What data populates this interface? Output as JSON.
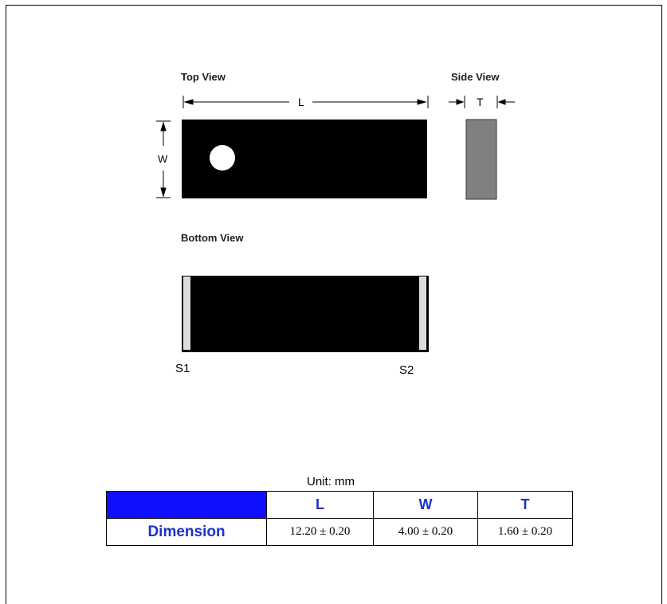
{
  "diagram": {
    "top_view_label": "Top View",
    "side_view_label": "Side View",
    "bottom_view_label": "Bottom View",
    "dim_l": "L",
    "dim_w": "W",
    "dim_t": "T",
    "terminal_1": "S1",
    "terminal_2": "S2"
  },
  "unit_label": "Unit: mm",
  "table": {
    "headers": [
      "L",
      "W",
      "T"
    ],
    "row_label": "Dimension",
    "values": [
      "12.20 ± 0.20",
      "4.00 ± 0.20",
      "1.60 ± 0.20"
    ]
  },
  "colors": {
    "header_fill": "#1010ff",
    "header_text": "#1a32c8",
    "component_body": "#000000",
    "side_body": "#808080"
  }
}
